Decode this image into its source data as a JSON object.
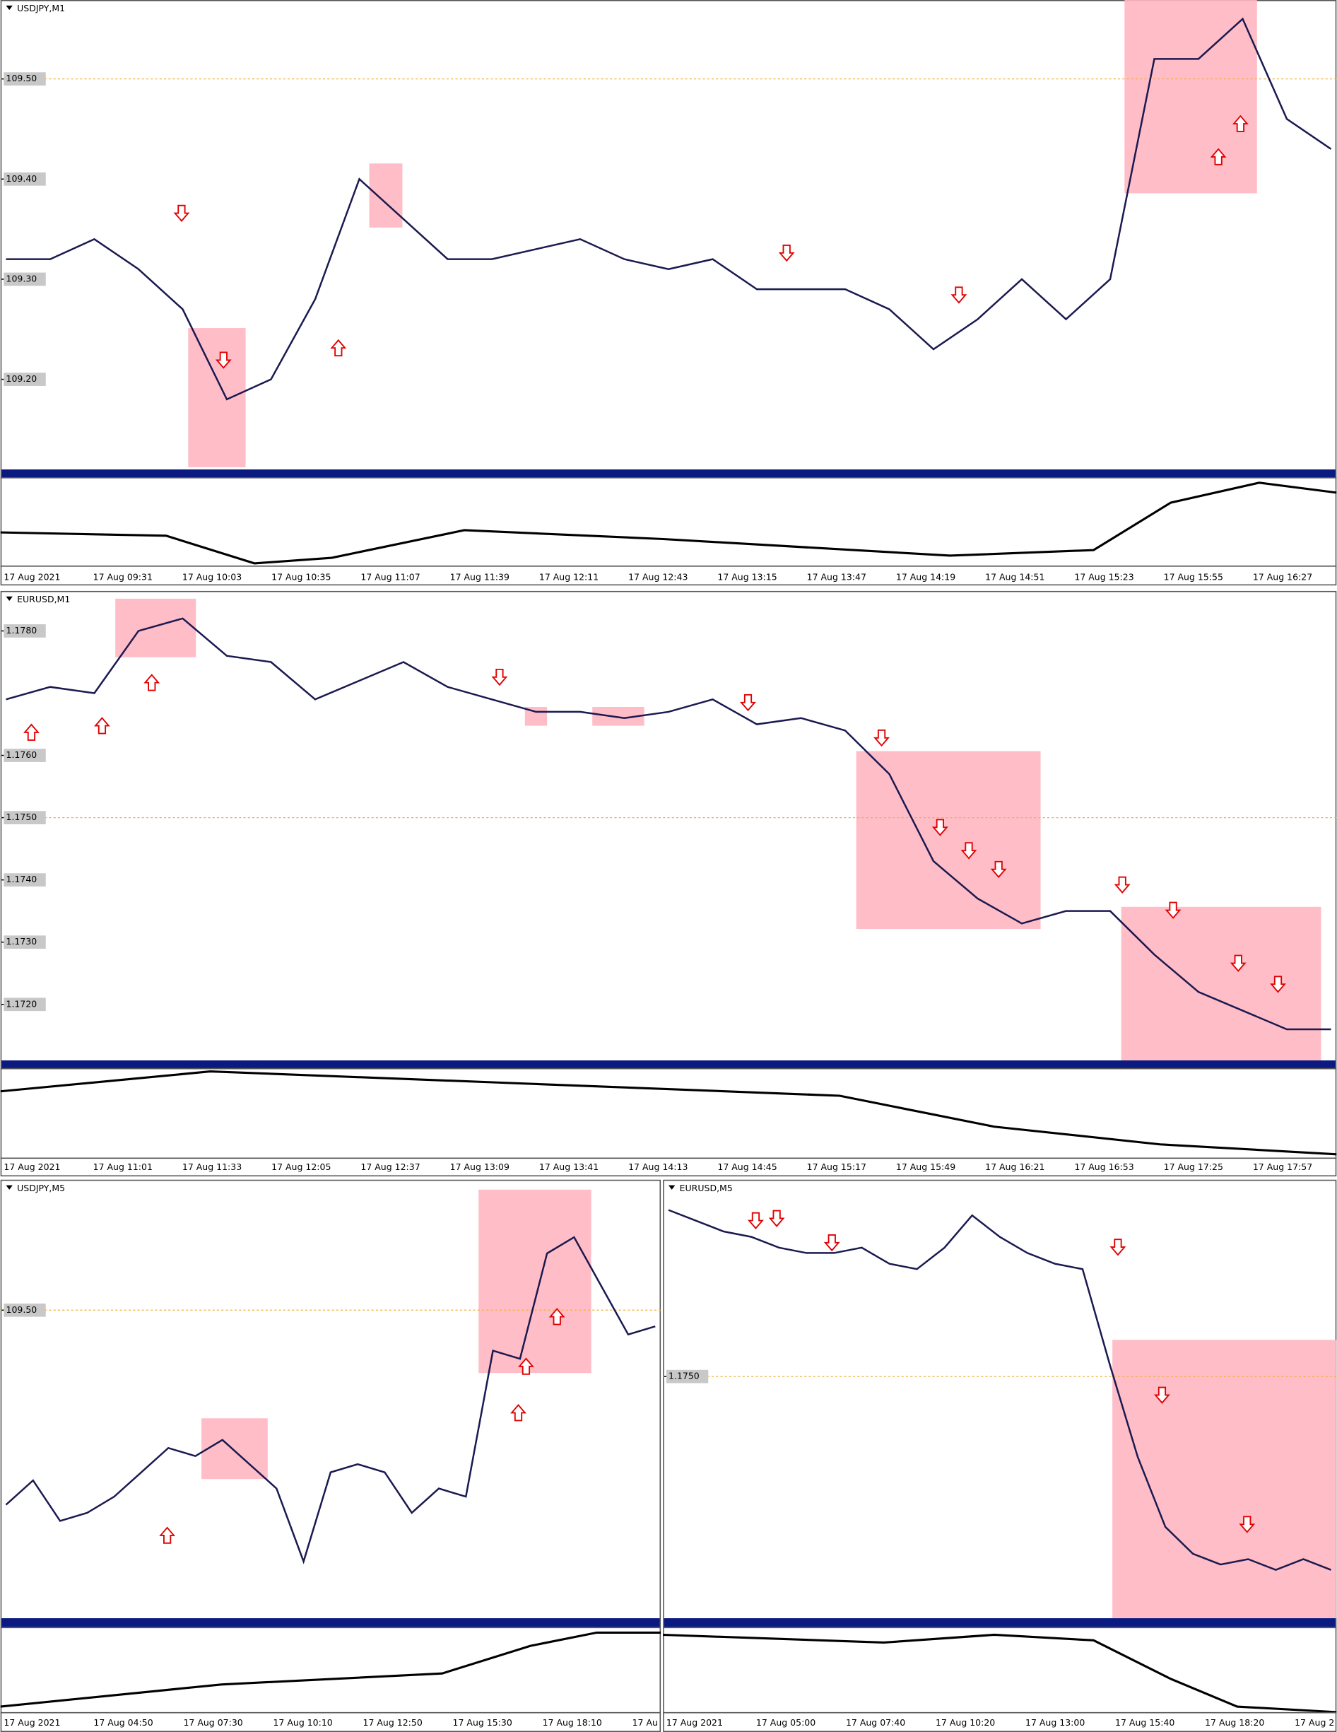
{
  "panels": [
    {
      "title": "USDJPY,M1",
      "ylim": [
        109.11,
        109.57
      ],
      "dashed_level": 109.5,
      "yticks": [
        {
          "value": 109.5,
          "label": "109.50"
        },
        {
          "value": 109.4,
          "label": "109.40"
        },
        {
          "value": 109.3,
          "label": "109.30"
        },
        {
          "value": 109.2,
          "label": "109.20"
        }
      ],
      "time_labels": [
        "17 Aug 2021",
        "17 Aug 09:31",
        "17 Aug 10:03",
        "17 Aug 10:35",
        "17 Aug 11:07",
        "17 Aug 11:39",
        "17 Aug 12:11",
        "17 Aug 12:43",
        "17 Aug 13:15",
        "17 Aug 13:47",
        "17 Aug 14:19",
        "17 Aug 14:51",
        "17 Aug 15:23",
        "17 Aug 15:55",
        "17 Aug 16:27"
      ],
      "price_path": [
        109.32,
        109.32,
        109.34,
        109.31,
        109.27,
        109.18,
        109.2,
        109.28,
        109.4,
        109.36,
        109.32,
        109.32,
        109.33,
        109.34,
        109.32,
        109.31,
        109.32,
        109.29,
        109.29,
        109.29,
        109.27,
        109.23,
        109.26,
        109.3,
        109.26,
        109.3,
        109.52,
        109.52,
        109.56,
        109.46,
        109.43
      ]
    },
    {
      "title": "EURUSD,M1",
      "ylim": [
        1.1711,
        1.1785
      ],
      "dashed_level": 1.175,
      "yticks": [
        {
          "value": 1.178,
          "label": "1.1780"
        },
        {
          "value": 1.176,
          "label": "1.1760"
        },
        {
          "value": 1.175,
          "label": "1.1750"
        },
        {
          "value": 1.174,
          "label": "1.1740"
        },
        {
          "value": 1.173,
          "label": "1.1730"
        },
        {
          "value": 1.172,
          "label": "1.1720"
        }
      ],
      "time_labels": [
        "17 Aug 2021",
        "17 Aug 11:01",
        "17 Aug 11:33",
        "17 Aug 12:05",
        "17 Aug 12:37",
        "17 Aug 13:09",
        "17 Aug 13:41",
        "17 Aug 14:13",
        "17 Aug 14:45",
        "17 Aug 15:17",
        "17 Aug 15:49",
        "17 Aug 16:21",
        "17 Aug 16:53",
        "17 Aug 17:25",
        "17 Aug 17:57"
      ],
      "price_path": [
        1.1769,
        1.1771,
        1.177,
        1.178,
        1.1782,
        1.1776,
        1.1775,
        1.1769,
        1.1772,
        1.1775,
        1.1771,
        1.1769,
        1.1767,
        1.1767,
        1.1766,
        1.1767,
        1.1769,
        1.1765,
        1.1766,
        1.1764,
        1.1757,
        1.1743,
        1.1737,
        1.1733,
        1.1735,
        1.1735,
        1.1728,
        1.1722,
        1.1719,
        1.1716,
        1.1716
      ]
    },
    {
      "title": "USDJPY,M5",
      "ylim": [
        109.12,
        109.65
      ],
      "dashed_level": 109.5,
      "yticks": [
        {
          "value": 109.5,
          "label": "109.50"
        }
      ],
      "time_labels": [
        "17 Aug 2021",
        "17 Aug 04:50",
        "17 Aug 07:30",
        "17 Aug 10:10",
        "17 Aug 12:50",
        "17 Aug 15:30",
        "17 Aug 18:10",
        "17 Au"
      ],
      "price_path": [
        109.26,
        109.29,
        109.24,
        109.25,
        109.27,
        109.3,
        109.33,
        109.32,
        109.34,
        109.31,
        109.28,
        109.19,
        109.3,
        109.31,
        109.3,
        109.25,
        109.28,
        109.27,
        109.45,
        109.44,
        109.57,
        109.59,
        109.53,
        109.47,
        109.48
      ]
    },
    {
      "title": "EURUSD,M5",
      "ylim": [
        1.1705,
        1.1785
      ],
      "dashed_level": 1.175,
      "yticks": [
        {
          "value": 1.175,
          "label": "1.1750"
        }
      ],
      "time_labels": [
        "17 Aug 2021",
        "17 Aug 05:00",
        "17 Aug 07:40",
        "17 Aug 10:20",
        "17 Aug 13:00",
        "17 Aug 15:40",
        "17 Aug 18:20",
        "17 Aug 2"
      ],
      "price_path": [
        1.1781,
        1.1779,
        1.1777,
        1.1776,
        1.1774,
        1.1773,
        1.1773,
        1.1774,
        1.1771,
        1.177,
        1.1774,
        1.178,
        1.1776,
        1.1773,
        1.1771,
        1.177,
        1.1752,
        1.1735,
        1.1722,
        1.1717,
        1.1715,
        1.1716,
        1.1714,
        1.1716,
        1.1714
      ]
    }
  ]
}
